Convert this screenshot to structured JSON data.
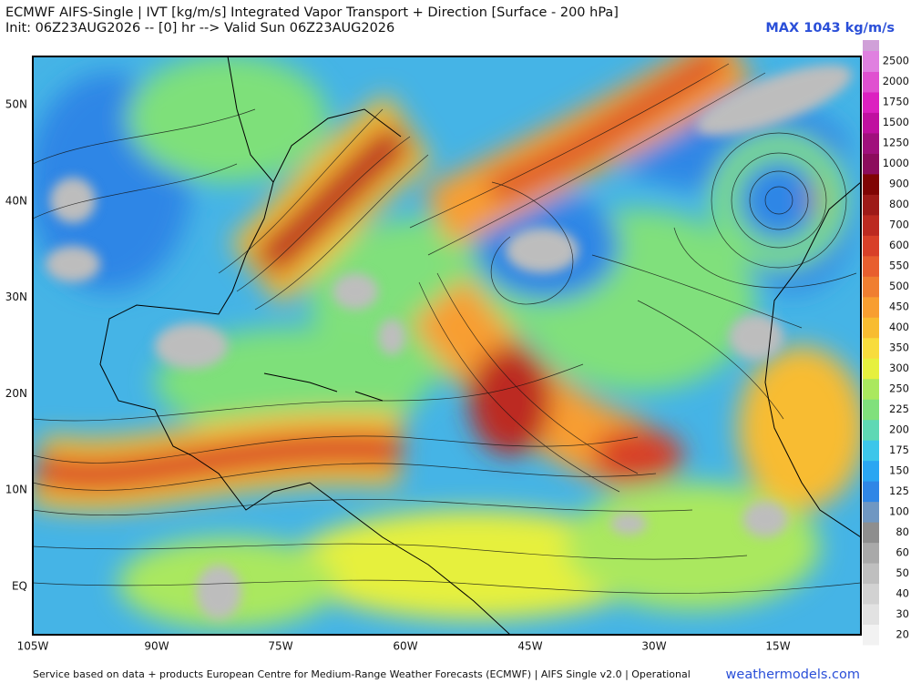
{
  "header": {
    "title": "ECMWF AIFS-Single | IVT [kg/m/s] Integrated Vapor Transport + Direction [Surface - 200 hPa]",
    "subtitle": "Init: 06Z23AUG2026 -- [0] hr --> Valid Sun 06Z23AUG2026",
    "max_label": "MAX 1043 kg/m/s"
  },
  "map": {
    "longitude_labels": [
      "105W",
      "90W",
      "75W",
      "60W",
      "45W",
      "30W",
      "15W"
    ],
    "latitude_labels": [
      "50N",
      "40N",
      "30N",
      "20N",
      "10N",
      "EQ"
    ]
  },
  "colorbar": {
    "levels": [
      20,
      30,
      40,
      50,
      60,
      80,
      100,
      125,
      150,
      175,
      200,
      225,
      250,
      300,
      350,
      400,
      450,
      500,
      550,
      600,
      700,
      800,
      900,
      1000,
      1250,
      1500,
      1750,
      2000,
      2500
    ],
    "colors": [
      "#f2f2f2",
      "#e2e2e2",
      "#d2d2d2",
      "#bfbfbf",
      "#a9a9a9",
      "#8e8e8e",
      "#6f97c2",
      "#2f86e6",
      "#2aa6f2",
      "#3cc6ea",
      "#5ed8b4",
      "#80e07c",
      "#aae85e",
      "#e6f03e",
      "#f8dc3c",
      "#f8bc30",
      "#f89e30",
      "#f07e30",
      "#e85e2e",
      "#d84028",
      "#bc2a20",
      "#9e1a18",
      "#800404",
      "#8c0c5c",
      "#a0107c",
      "#c010a0",
      "#dc20c0",
      "#e050d0",
      "#e080e0"
    ]
  },
  "footer": {
    "source": "Service based on data + products European Centre for Medium-Range Weather Forecasts (ECMWF) | AIFS Single v2.0 | Operational",
    "site": "weathermodels.com"
  }
}
